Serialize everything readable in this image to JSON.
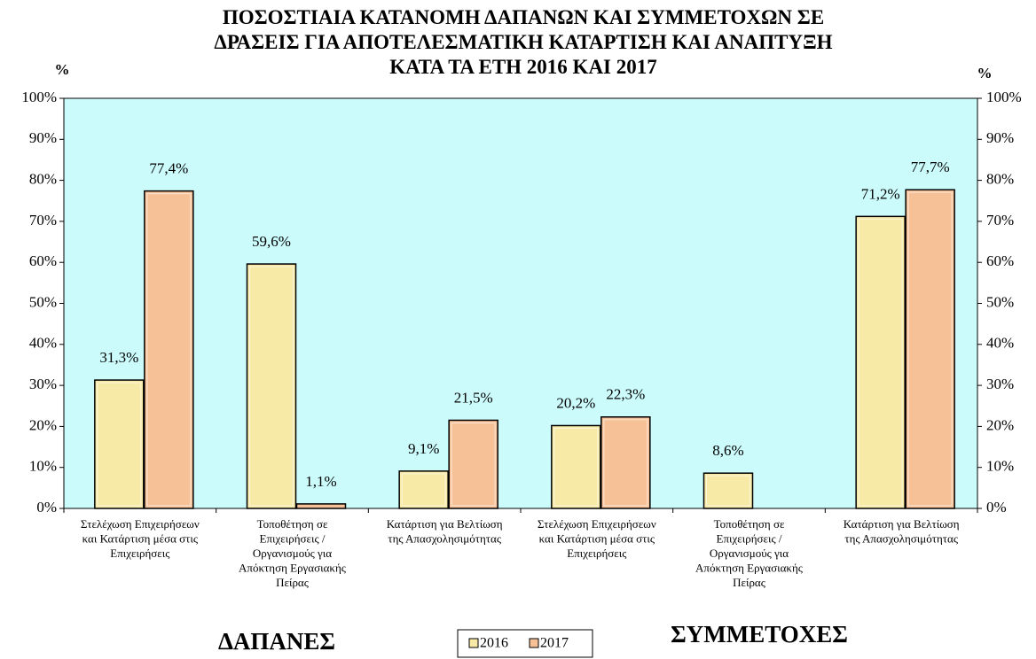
{
  "chart_data": {
    "type": "bar",
    "title": "ΠΟΣΟΣΤΙΑΙΑ ΚΑΤΑΝΟΜΗ ΔΑΠΑΝΩΝ ΚΑΙ ΣΥΜΜΕΤΟΧΩΝ ΣΕ\nΔΡΑΣΕΙΣ ΓΙΑ ΑΠΟΤΕΛΕΣΜΑΤΙΚΗ ΚΑΤΑΡΤΙΣΗ ΚΑΙ ΑΝΑΠΤΥΞΗ\nΚΑΤΑ ΤΑ ΕΤΗ 2016 ΚΑΙ 2017",
    "y_label": "%",
    "y2_label": "%",
    "annotations": [
      "ΔΑΠΑΝΕΣ",
      "ΣΥΜΜΕΤΟΧΕΣ"
    ],
    "categories": [
      "Στελέχωση Επιχειρήσεων\nκαι Κατάρτιση μέσα στις\nΕπιχειρήσεις",
      "Τοποθέτηση σε\nΕπιχειρήσεις /\nΟργανισμούς για\nΑπόκτηση Εργασιακής\nΠείρας",
      "Κατάρτιση για Βελτίωση\nτης Απασχολησιμότητας",
      "Στελέχωση Επιχειρήσεων\nκαι Κατάρτιση μέσα στις\nΕπιχειρήσεις",
      "Τοποθέτηση σε\nΕπιχειρήσεις /\nΟργανισμούς για\nΑπόκτηση Εργασιακής\nΠείρας",
      "Κατάρτιση για Βελτίωση\nτης Απασχολησιμότητας"
    ],
    "series": [
      {
        "name": "2016",
        "color": "#f7e9a6",
        "values": [
          31.3,
          59.6,
          9.1,
          20.2,
          8.6,
          71.2
        ],
        "value_labels": [
          "31,3%",
          "59,6%",
          "9,1%",
          "20,2%",
          "8,6%",
          "71,2%"
        ]
      },
      {
        "name": "2017",
        "color": "#f7c197",
        "values": [
          77.4,
          1.1,
          21.5,
          22.3,
          null,
          77.7
        ],
        "value_labels": [
          "77,4%",
          "1,1%",
          "21,5%",
          "22,3%",
          null,
          "77,7%"
        ]
      }
    ],
    "ylim": [
      0,
      100
    ],
    "yticks": [
      {
        "value": 0,
        "label": "0%"
      },
      {
        "value": 10,
        "label": "10%"
      },
      {
        "value": 20,
        "label": "20%"
      },
      {
        "value": 30,
        "label": "30%"
      },
      {
        "value": 40,
        "label": "40%"
      },
      {
        "value": 50,
        "label": "50%"
      },
      {
        "value": 60,
        "label": "60%"
      },
      {
        "value": 70,
        "label": "70%"
      },
      {
        "value": 80,
        "label": "80%"
      },
      {
        "value": 90,
        "label": "90%"
      },
      {
        "value": 100,
        "label": "100%"
      }
    ],
    "y2lim": [
      0,
      100
    ],
    "y2ticks": [
      {
        "value": 0,
        "label": "0%"
      },
      {
        "value": 10,
        "label": "10%"
      },
      {
        "value": 20,
        "label": "20%"
      },
      {
        "value": 30,
        "label": "30%"
      },
      {
        "value": 40,
        "label": "40%"
      },
      {
        "value": 50,
        "label": "50%"
      },
      {
        "value": 60,
        "label": "60%"
      },
      {
        "value": 70,
        "label": "70%"
      },
      {
        "value": 80,
        "label": "80%"
      },
      {
        "value": 90,
        "label": "90%"
      },
      {
        "value": 100,
        "label": "100%"
      }
    ],
    "grid": false,
    "plot_background": "#ccfbfc",
    "legend": "bottom"
  }
}
